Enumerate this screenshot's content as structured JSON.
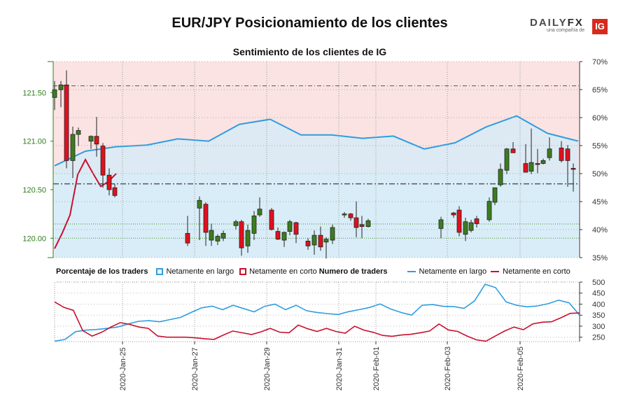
{
  "title": "EUR/JPY Posicionamiento de los clientes",
  "subtitle": "Sentimiento de los clientes de IG",
  "logo": {
    "brand_a": "DAILY",
    "brand_b": "FX",
    "tagline": "una compañía de",
    "ig": "IG"
  },
  "legend": {
    "pct_title": "Porcentaje de los traders",
    "pct_long": "Netamente en largo",
    "pct_short": "Netamente en corto",
    "num_title": "Numero de traders",
    "num_long": "Netamente en largo",
    "num_short": "Netamente en corto"
  },
  "colors": {
    "long": "#2f9de0",
    "short": "#c8102e",
    "bull": "#3a7d1e",
    "bear": "#e0101e",
    "zone_short": "#fbe3e3",
    "zone_long": "#e4f2fb",
    "left_axis": "#2e7d1a"
  },
  "chart_data": [
    {
      "type": "candlestick",
      "title": "Sentimiento de los clientes de IG",
      "left_axis": {
        "range": [
          119.8,
          121.82
        ],
        "ticks": [
          120.0,
          120.5,
          121.0,
          121.5
        ],
        "tick_labels": [
          "120.00",
          "120.50",
          "121.00",
          "121.50"
        ]
      },
      "right_axis": {
        "range": [
          35,
          70
        ],
        "ticks": [
          35,
          40,
          45,
          50,
          55,
          60,
          65,
          70
        ],
        "tick_labels": [
          "35%",
          "40%",
          "45%",
          "50%",
          "55%",
          "60%",
          "65%",
          "70%"
        ]
      },
      "x_ticks": [
        "2020-Jan-25",
        "2020-Jan-27",
        "2020-Jan-29",
        "2020-Jan-31",
        "2020-Feb-01",
        "2020-Feb-03",
        "2020-Feb-05"
      ],
      "reference_lines": {
        "price_high": 121.57,
        "price_mid": 120.56,
        "price_low": 120.0,
        "percent_50": 50,
        "percent_41": 41
      },
      "candles_ohlc": [
        [
          121.45,
          121.62,
          121.32,
          121.53
        ],
        [
          121.53,
          121.62,
          121.35,
          121.58
        ],
        [
          121.58,
          121.73,
          120.72,
          120.8
        ],
        [
          120.8,
          121.15,
          120.62,
          121.07
        ],
        [
          121.07,
          121.14,
          120.95,
          121.11
        ],
        [
          121.0,
          121.06,
          120.92,
          121.05
        ],
        [
          121.05,
          121.25,
          120.84,
          120.97
        ],
        [
          120.95,
          120.98,
          120.52,
          120.65
        ],
        [
          120.65,
          120.72,
          120.44,
          120.5
        ],
        [
          120.52,
          120.56,
          120.42,
          120.44
        ],
        [
          120.05,
          120.23,
          119.92,
          119.95
        ],
        [
          120.31,
          120.43,
          119.98,
          120.39
        ],
        [
          120.35,
          120.37,
          119.92,
          120.06
        ],
        [
          119.98,
          120.15,
          119.92,
          120.08
        ],
        [
          119.97,
          120.04,
          119.93,
          120.02
        ],
        [
          120.0,
          120.08,
          119.97,
          120.05
        ],
        [
          120.13,
          120.19,
          120.09,
          120.17
        ],
        [
          120.17,
          120.19,
          119.82,
          119.9
        ],
        [
          119.92,
          120.14,
          119.85,
          120.08
        ],
        [
          120.05,
          120.28,
          119.98,
          120.23
        ],
        [
          120.24,
          120.42,
          120.22,
          120.3
        ],
        [
          120.29,
          120.31,
          120.08,
          120.09
        ],
        [
          120.07,
          120.11,
          119.98,
          119.99
        ],
        [
          119.98,
          120.07,
          119.91,
          120.06
        ],
        [
          120.07,
          120.19,
          120.03,
          120.17
        ],
        [
          120.16,
          120.17,
          119.95,
          120.04
        ],
        [
          119.97,
          120.0,
          119.88,
          119.92
        ],
        [
          119.93,
          120.08,
          119.83,
          120.03
        ],
        [
          120.03,
          120.12,
          119.87,
          119.91
        ],
        [
          119.96,
          120.01,
          119.79,
          119.99
        ],
        [
          119.98,
          120.14,
          119.94,
          120.11
        ],
        [
          120.24,
          120.27,
          120.21,
          120.25
        ],
        [
          120.25,
          120.26,
          120.18,
          120.21
        ],
        [
          120.21,
          120.38,
          120.01,
          120.11
        ],
        [
          120.14,
          120.23,
          120.0,
          120.12
        ],
        [
          120.12,
          120.2,
          120.11,
          120.18
        ],
        [
          120.1,
          120.22,
          120.0,
          120.19
        ],
        [
          120.26,
          120.27,
          120.21,
          120.24
        ],
        [
          120.29,
          120.33,
          120.02,
          120.06
        ],
        [
          120.04,
          120.21,
          119.97,
          120.17
        ],
        [
          120.08,
          120.19,
          120.06,
          120.16
        ],
        [
          120.2,
          120.23,
          120.11,
          120.15
        ],
        [
          120.19,
          120.42,
          120.17,
          120.38
        ],
        [
          120.37,
          120.52,
          120.34,
          120.52
        ],
        [
          120.55,
          120.77,
          120.53,
          120.71
        ],
        [
          120.7,
          120.93,
          120.66,
          120.92
        ],
        [
          120.92,
          120.99,
          120.88,
          120.88
        ],
        [
          120.77,
          120.97,
          120.73,
          120.68
        ],
        [
          120.69,
          121.13,
          120.66,
          120.78
        ],
        [
          120.77,
          120.92,
          120.67,
          120.76
        ],
        [
          120.77,
          120.82,
          120.76,
          120.8
        ],
        [
          120.83,
          121.04,
          120.8,
          120.92
        ],
        [
          120.93,
          121.0,
          120.78,
          120.8
        ],
        [
          120.92,
          120.96,
          120.53,
          120.8
        ],
        [
          120.72,
          120.77,
          120.48,
          120.71
        ]
      ],
      "series": [
        {
          "name": "Netamente en largo",
          "values_pct": [
            51.4,
            54.0,
            54.8,
            55.1,
            56.2,
            55.8,
            58.8,
            59.7,
            56.9,
            56.9,
            56.3,
            56.7,
            54.4,
            55.5,
            58.3,
            60.3,
            57.2,
            55.8
          ]
        },
        {
          "name": "Netamente en corto",
          "values_pct": [
            36.6,
            39.4,
            42.6,
            49.8,
            52.5,
            50.0,
            47.7,
            48.6,
            50.0
          ]
        }
      ]
    },
    {
      "type": "line",
      "title": "Numero de traders",
      "y_axis": {
        "range": [
          230,
          500
        ],
        "ticks": [
          250,
          300,
          350,
          400,
          450,
          500
        ],
        "tick_labels": [
          "250",
          "300",
          "350",
          "400",
          "450",
          "500"
        ]
      },
      "series": [
        {
          "name": "Netamente en largo",
          "values": [
            232,
            240,
            275,
            282,
            285,
            290,
            296,
            310,
            322,
            325,
            320,
            330,
            340,
            362,
            383,
            391,
            375,
            395,
            380,
            365,
            390,
            400,
            375,
            395,
            370,
            362,
            357,
            353,
            366,
            375,
            385,
            401,
            378,
            362,
            350,
            395,
            398,
            390,
            389,
            381,
            415,
            490,
            475,
            410,
            395,
            388,
            392,
            402,
            418,
            406,
            350
          ]
        },
        {
          "name": "Netamente en corto",
          "values": [
            410,
            385,
            372,
            280,
            255,
            272,
            296,
            316,
            308,
            296,
            290,
            255,
            250,
            250,
            250,
            247,
            243,
            240,
            260,
            278,
            270,
            262,
            274,
            290,
            273,
            270,
            305,
            288,
            276,
            290,
            276,
            268,
            300,
            282,
            272,
            258,
            254,
            260,
            263,
            270,
            278,
            310,
            283,
            276,
            255,
            238,
            232,
            255,
            278,
            296,
            284,
            310,
            318,
            320,
            338,
            358,
            360
          ]
        }
      ]
    }
  ]
}
